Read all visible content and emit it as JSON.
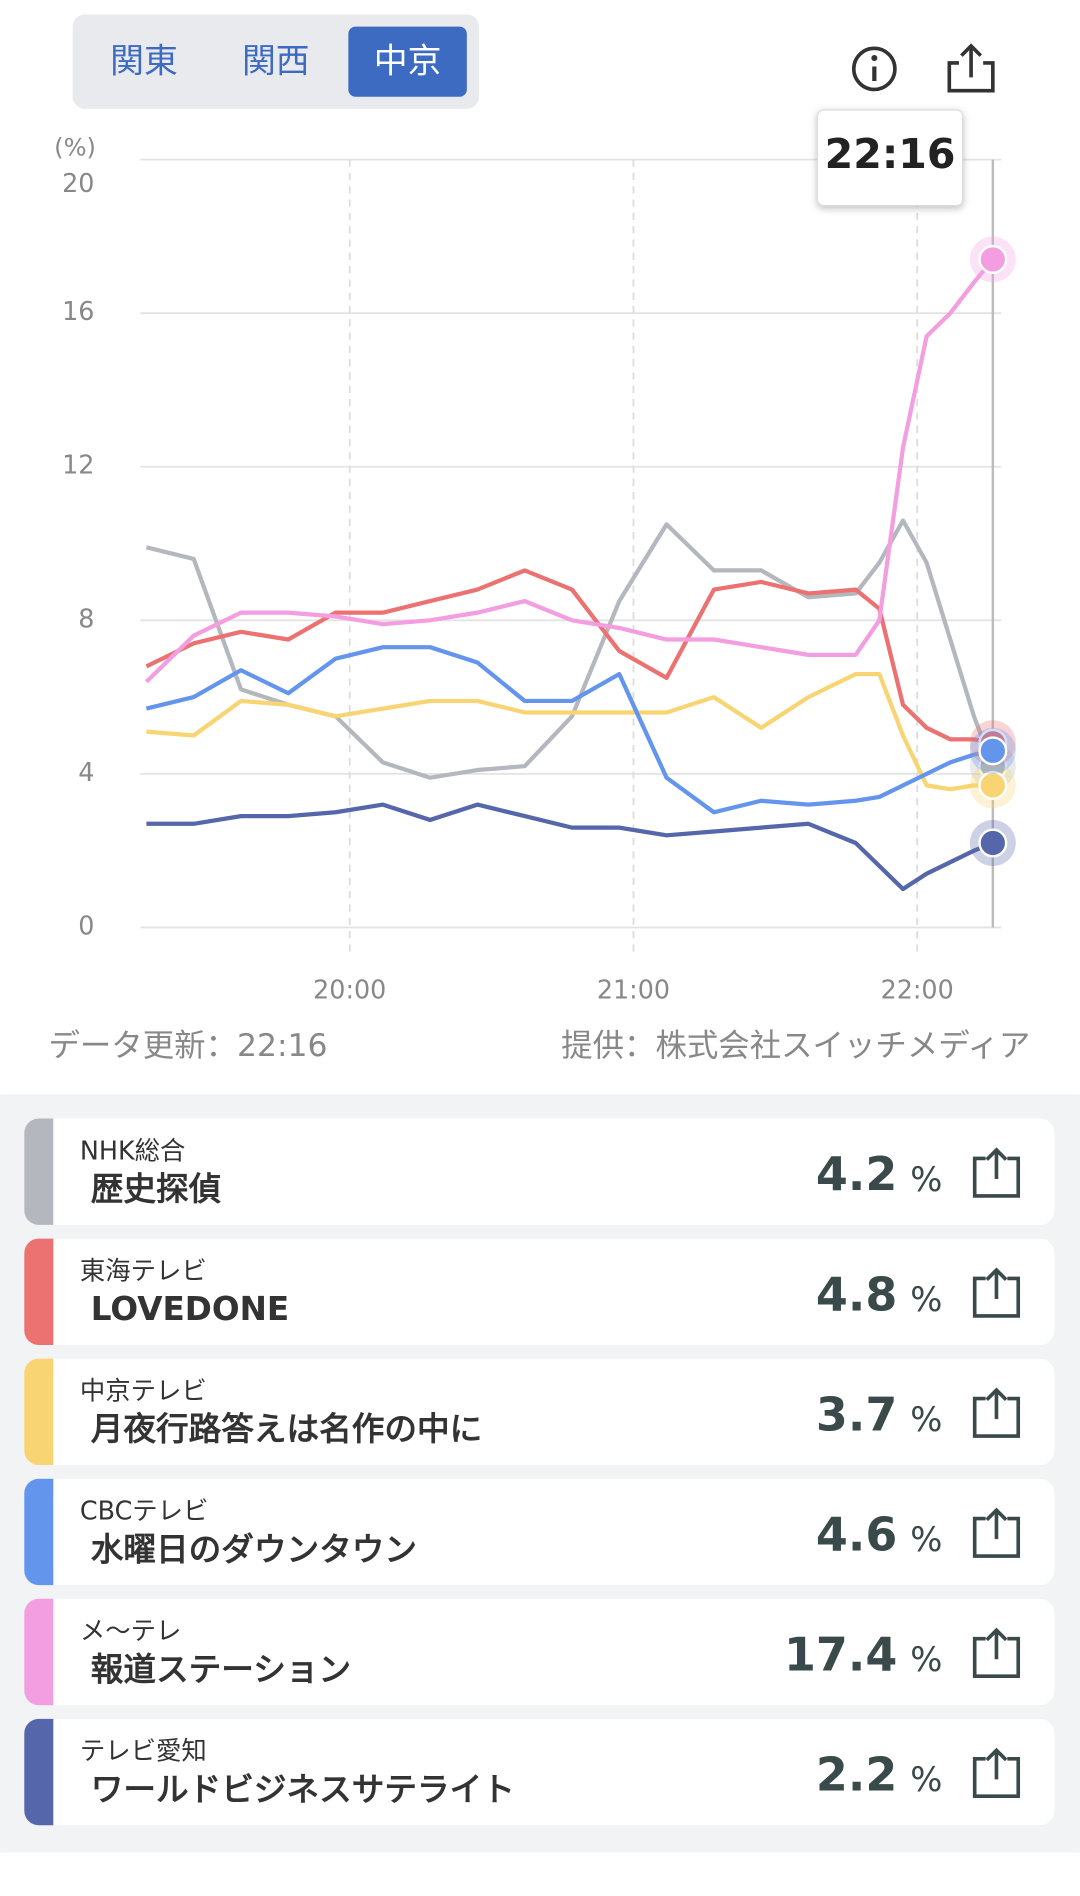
{
  "tabs": [
    {
      "label": "関東"
    },
    {
      "label": "関西"
    },
    {
      "label": "中京",
      "selected": true
    }
  ],
  "chart_data": {
    "type": "line",
    "unit_label": "(%)",
    "tooltip": "22:16",
    "x": [
      "19:17",
      "19:27",
      "19:37",
      "19:47",
      "19:57",
      "20:07",
      "20:17",
      "20:27",
      "20:37",
      "20:47",
      "20:57",
      "21:07",
      "21:17",
      "21:27",
      "21:37",
      "21:47",
      "21:52",
      "21:57",
      "22:02",
      "22:07",
      "22:12",
      "22:16"
    ],
    "xlim": [
      "19:17",
      "22:16"
    ],
    "xticks": [
      "20:00",
      "21:00",
      "22:00"
    ],
    "ylim": [
      0,
      20
    ],
    "yticks": [
      0,
      4,
      8,
      12,
      16,
      20
    ],
    "grid": true,
    "series": [
      {
        "name": "NHK総合",
        "color": "#b4b8be",
        "values": [
          9.9,
          9.6,
          6.2,
          5.8,
          5.5,
          4.3,
          3.9,
          4.1,
          4.2,
          5.5,
          8.5,
          10.5,
          9.3,
          9.3,
          8.6,
          8.7,
          9.5,
          10.6,
          9.5,
          7.5,
          5.5,
          4.2
        ]
      },
      {
        "name": "東海テレビ",
        "color": "#ec7272",
        "values": [
          6.8,
          7.4,
          7.7,
          7.5,
          8.2,
          8.2,
          8.5,
          8.8,
          9.3,
          8.8,
          7.2,
          6.5,
          8.8,
          9.0,
          8.7,
          8.8,
          8.3,
          5.8,
          5.2,
          4.9,
          4.9,
          4.8
        ]
      },
      {
        "name": "中京テレビ",
        "color": "#f8d572",
        "values": [
          5.1,
          5.0,
          5.9,
          5.8,
          5.5,
          5.7,
          5.9,
          5.9,
          5.6,
          5.6,
          5.6,
          5.6,
          6.0,
          5.2,
          6.0,
          6.6,
          6.6,
          5.0,
          3.7,
          3.6,
          3.7,
          3.7
        ]
      },
      {
        "name": "CBCテレビ",
        "color": "#6495ed",
        "values": [
          5.7,
          6.0,
          6.7,
          6.1,
          7.0,
          7.3,
          7.3,
          6.9,
          5.9,
          5.9,
          6.6,
          3.9,
          3.0,
          3.3,
          3.2,
          3.3,
          3.4,
          3.7,
          4.0,
          4.3,
          4.5,
          4.6
        ]
      },
      {
        "name": "メ〜テレ",
        "color": "#f29ee0",
        "values": [
          6.4,
          7.6,
          8.2,
          8.2,
          8.1,
          7.9,
          8.0,
          8.2,
          8.5,
          8.0,
          7.8,
          7.5,
          7.5,
          7.3,
          7.1,
          7.1,
          8.0,
          12.5,
          15.4,
          16.0,
          16.8,
          17.4
        ]
      },
      {
        "name": "テレビ愛知",
        "color": "#5566aa",
        "values": [
          2.7,
          2.7,
          2.9,
          2.9,
          3.0,
          3.2,
          2.8,
          3.2,
          2.9,
          2.6,
          2.6,
          2.4,
          2.5,
          2.6,
          2.7,
          2.2,
          1.6,
          1.0,
          1.4,
          1.7,
          2.0,
          2.2
        ]
      }
    ]
  },
  "footer": {
    "updated": "データ更新：22:16",
    "source": "提供：株式会社スイッチメディア"
  },
  "list": {
    "unit": "%",
    "programs": [
      "歴史探偵",
      "LOVEDONE",
      "月夜行路答えは名作の中に",
      "水曜日のダウンタウン",
      "報道ステーション",
      "ワールドビジネスサテライト"
    ]
  }
}
